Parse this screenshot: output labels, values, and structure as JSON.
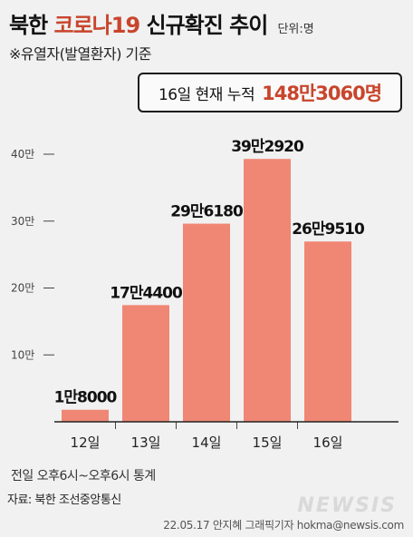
{
  "header": {
    "title_prefix": "북한 ",
    "title_highlight": "코로나19",
    "title_suffix": " 신규확진 추이",
    "unit": "단위:명",
    "subtitle": "※유열자(발열환자) 기준"
  },
  "total": {
    "label": "16일 현재 누적",
    "value": "148만3060명"
  },
  "footer": {
    "note": "전일 오후6시~오후6시 통계",
    "source": "자료: 북한 조선중앙통신",
    "logo": "NEWSIS",
    "credit": "22.05.17 안지혜 그래픽기자  hokma@newsis.com"
  },
  "colors": {
    "bar": "#f08774",
    "accent": "#c8452c",
    "axis": "#222222"
  },
  "chart_data": {
    "type": "bar",
    "categories": [
      "12일",
      "13일",
      "14일",
      "15일",
      "16일"
    ],
    "values": [
      18000,
      174400,
      296180,
      392920,
      269510
    ],
    "data_labels": [
      "1만8000",
      "17만4400",
      "29만6180",
      "39만2920",
      "26만9510"
    ],
    "ylim": [
      0,
      400000
    ],
    "yticks": [
      {
        "value": 100000,
        "label": "10만"
      },
      {
        "value": 200000,
        "label": "20만"
      },
      {
        "value": 300000,
        "label": "30만"
      },
      {
        "value": 400000,
        "label": "40만"
      }
    ],
    "grid": false,
    "legend": "none"
  }
}
